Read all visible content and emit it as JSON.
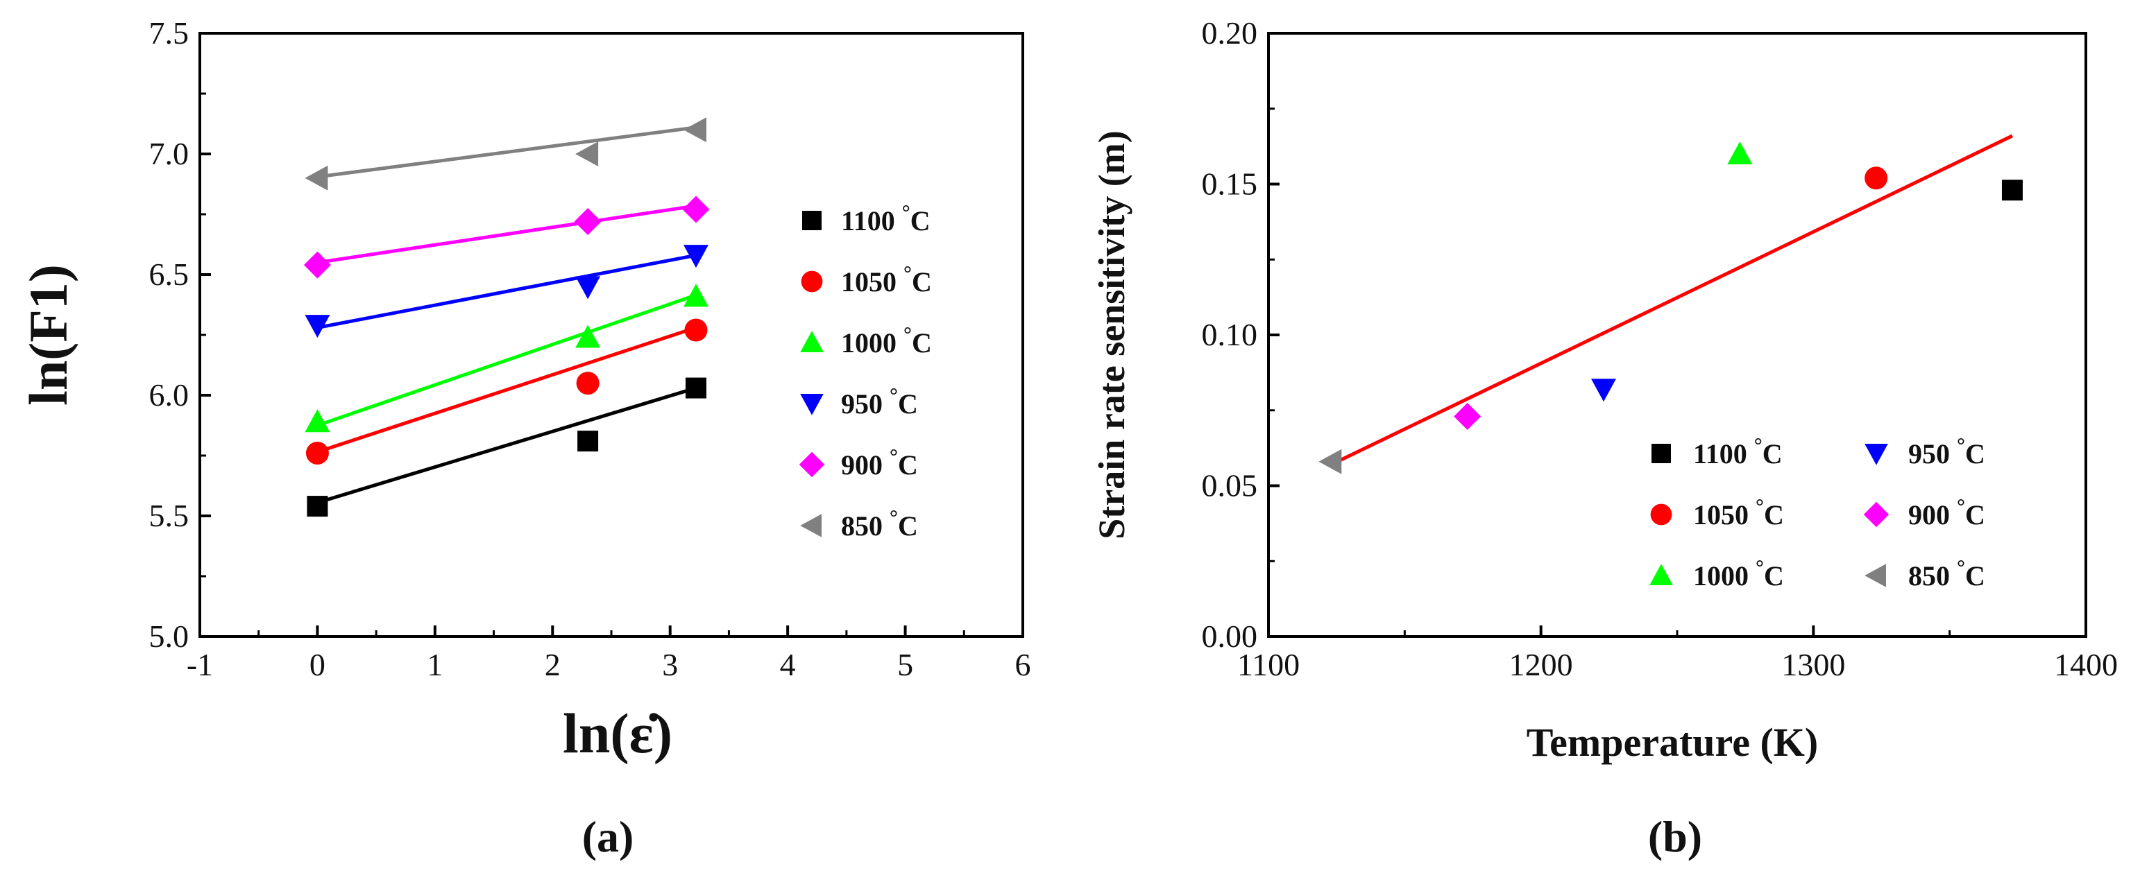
{
  "chart_data": [
    {
      "type": "scatter",
      "panel_label": "(a)",
      "xlabel": "ln(ε̇)",
      "ylabel": "ln(F1)",
      "xlim": [
        -1,
        6
      ],
      "ylim": [
        5.0,
        7.5
      ],
      "x_ticks": [
        "-1",
        "0",
        "1",
        "2",
        "3",
        "4",
        "5",
        "6"
      ],
      "y_ticks": [
        "5.0",
        "5.5",
        "6.0",
        "6.5",
        "7.0",
        "7.5"
      ],
      "x_tick_values": [
        -1,
        0,
        1,
        2,
        3,
        4,
        5,
        6
      ],
      "y_tick_values": [
        5.0,
        5.5,
        6.0,
        6.5,
        7.0,
        7.5
      ],
      "series": [
        {
          "name": "1100",
          "unit": "°C",
          "color": "#000000",
          "marker": "square",
          "x": [
            0,
            2.3,
            3.22
          ],
          "y": [
            5.54,
            5.81,
            6.03
          ],
          "fit": [
            5.555,
            6.03
          ]
        },
        {
          "name": "1050",
          "unit": "°C",
          "color": "#ff0000",
          "marker": "circle",
          "x": [
            0,
            2.3,
            3.22
          ],
          "y": [
            5.76,
            6.05,
            6.27
          ],
          "fit": [
            5.765,
            6.28
          ]
        },
        {
          "name": "1000",
          "unit": "°C",
          "color": "#00ff00",
          "marker": "triangle-up",
          "x": [
            0,
            2.3,
            3.22
          ],
          "y": [
            5.89,
            6.24,
            6.41
          ],
          "fit": [
            5.875,
            6.415
          ]
        },
        {
          "name": "950",
          "unit": "°C",
          "color": "#0000ff",
          "marker": "triangle-down",
          "x": [
            0,
            2.3,
            3.22
          ],
          "y": [
            6.29,
            6.45,
            6.58
          ],
          "fit": [
            6.28,
            6.58
          ]
        },
        {
          "name": "900",
          "unit": "°C",
          "color": "#ff00ff",
          "marker": "diamond",
          "x": [
            0,
            2.3,
            3.22
          ],
          "y": [
            6.54,
            6.72,
            6.77
          ],
          "fit": [
            6.55,
            6.785
          ]
        },
        {
          "name": "850",
          "unit": "°C",
          "color": "#808080",
          "marker": "triangle-left",
          "x": [
            0,
            2.3,
            3.22
          ],
          "y": [
            6.9,
            7.0,
            7.1
          ],
          "fit": [
            6.905,
            7.11
          ]
        }
      ],
      "legend": "right"
    },
    {
      "type": "scatter",
      "panel_label": "(b)",
      "xlabel": "Temperature (K)",
      "ylabel": "Strain rate sensitivity (m)",
      "xlim": [
        1100,
        1400
      ],
      "ylim": [
        0.0,
        0.2
      ],
      "x_ticks": [
        "1100",
        "1200",
        "1300",
        "1400"
      ],
      "y_ticks": [
        "0.00",
        "0.05",
        "0.10",
        "0.15",
        "0.20"
      ],
      "x_tick_values": [
        1100,
        1200,
        1300,
        1400
      ],
      "y_tick_values": [
        0.0,
        0.05,
        0.1,
        0.15,
        0.2
      ],
      "series": [
        {
          "name": "1100",
          "unit": "°C",
          "color": "#000000",
          "marker": "square",
          "x": [
            1373
          ],
          "y": [
            0.148
          ]
        },
        {
          "name": "1050",
          "unit": "°C",
          "color": "#ff0000",
          "marker": "circle",
          "x": [
            1323
          ],
          "y": [
            0.152
          ]
        },
        {
          "name": "1000",
          "unit": "°C",
          "color": "#00ff00",
          "marker": "triangle-up",
          "x": [
            1273
          ],
          "y": [
            0.16
          ]
        },
        {
          "name": "950",
          "unit": "°C",
          "color": "#0000ff",
          "marker": "triangle-down",
          "x": [
            1223
          ],
          "y": [
            0.082
          ]
        },
        {
          "name": "900",
          "unit": "°C",
          "color": "#ff00ff",
          "marker": "diamond",
          "x": [
            1173
          ],
          "y": [
            0.073
          ]
        },
        {
          "name": "850",
          "unit": "°C",
          "color": "#808080",
          "marker": "triangle-left",
          "x": [
            1123
          ],
          "y": [
            0.058
          ]
        }
      ],
      "fit_line": {
        "color": "#ff0000",
        "x": [
          1123,
          1373
        ],
        "y": [
          0.057,
          0.166
        ]
      },
      "legend": "bottom-right"
    }
  ]
}
